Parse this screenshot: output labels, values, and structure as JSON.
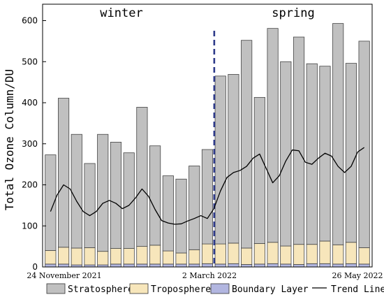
{
  "chart_data": {
    "type": "bar",
    "stacked": true,
    "ylabel": "Total Ozone Column/DU",
    "ylim": [
      0,
      640
    ],
    "yticks": [
      0,
      100,
      200,
      300,
      400,
      500,
      600
    ],
    "season_labels": [
      "winter",
      "spring"
    ],
    "date_labels": [
      "24 November 2021",
      "2 March 2022",
      "26 May 2022"
    ],
    "divider_after_bar": 13,
    "colors": {
      "stratosphere": "#c0c0c0",
      "troposphere": "#f7e6bb",
      "boundary": "#b2b6e0",
      "trend": "#000000",
      "divider": "#2e3a8a"
    },
    "series": [
      {
        "name": "Stratosphere",
        "values": [
          233,
          363,
          277,
          205,
          285,
          259,
          233,
          339,
          242,
          183,
          180,
          204,
          230,
          409,
          411,
          506,
          356,
          521,
          449,
          505,
          440,
          426,
          539,
          436,
          503
        ]
      },
      {
        "name": "Troposphere",
        "values": [
          33,
          41,
          41,
          42,
          33,
          38,
          38,
          43,
          46,
          32,
          27,
          35,
          48,
          49,
          50,
          40,
          50,
          52,
          44,
          49,
          47,
          55,
          47,
          52,
          40
        ]
      },
      {
        "name": "Boundary Layer",
        "values": [
          7,
          7,
          5,
          5,
          5,
          7,
          7,
          7,
          7,
          7,
          7,
          7,
          8,
          7,
          8,
          6,
          7,
          8,
          7,
          6,
          8,
          8,
          7,
          8,
          7
        ]
      }
    ],
    "trend": {
      "name": "Trend Line",
      "x": [
        0,
        0.5,
        1,
        1.5,
        2,
        2.5,
        3,
        3.5,
        4,
        4.5,
        5,
        5.5,
        6,
        6.5,
        7,
        7.5,
        8,
        8.5,
        9,
        9.5,
        10,
        10.5,
        11,
        11.5,
        12,
        12.5,
        13,
        13.5,
        14,
        14.5,
        15,
        15.5,
        16,
        16.5,
        17,
        17.5,
        18,
        18.5,
        19,
        19.5,
        20,
        20.5,
        21,
        21.5,
        22,
        22.5,
        23,
        23.5,
        24
      ],
      "y": [
        135,
        175,
        200,
        190,
        160,
        135,
        125,
        135,
        155,
        162,
        155,
        142,
        150,
        168,
        190,
        172,
        140,
        113,
        107,
        104,
        105,
        112,
        118,
        125,
        118,
        142,
        185,
        218,
        230,
        235,
        245,
        265,
        275,
        240,
        205,
        222,
        258,
        285,
        283,
        255,
        250,
        265,
        277,
        270,
        245,
        230,
        245,
        280,
        291
      ]
    },
    "legend": [
      "Stratosphere",
      "Troposphere",
      "Boundary Layer",
      "Trend Line"
    ],
    "legend_position": "bottom"
  }
}
